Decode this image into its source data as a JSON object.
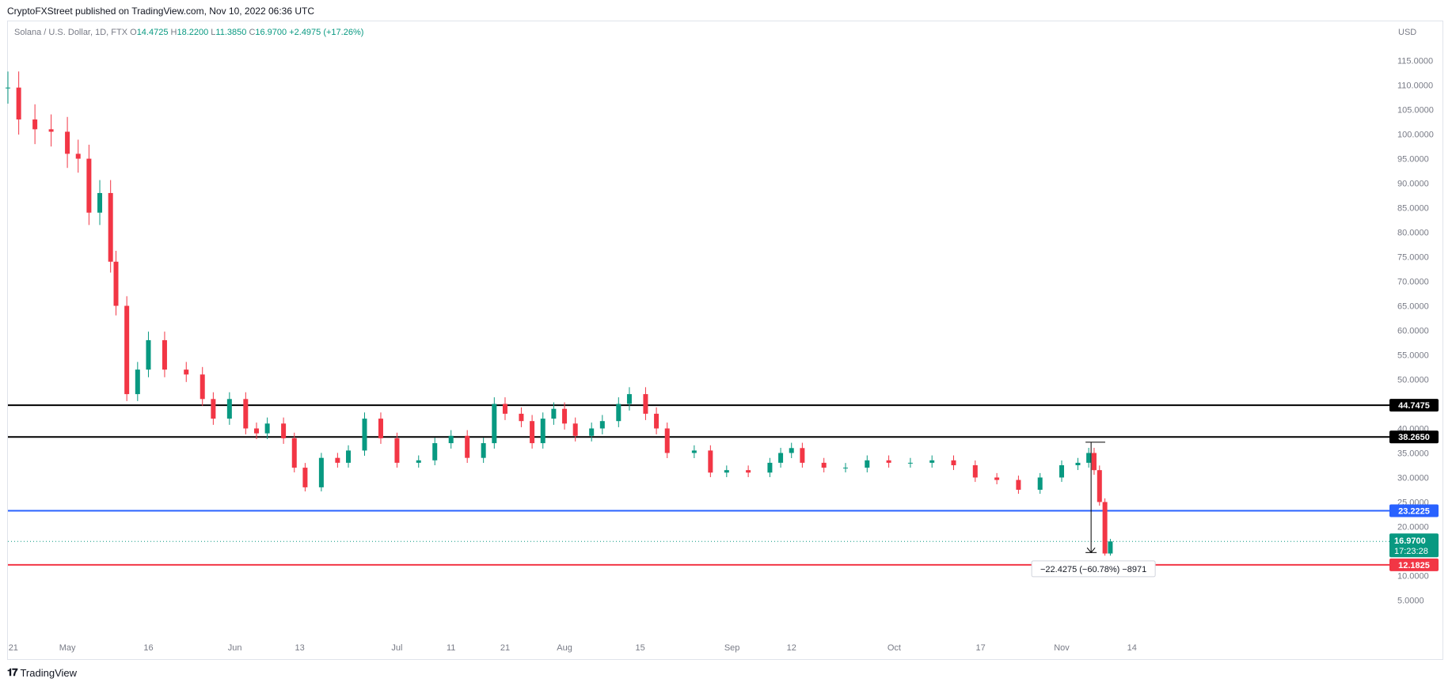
{
  "header": {
    "published_text": "CryptoFXStreet published on TradingView.com, Nov 10, 2022 06:36 UTC"
  },
  "legend": {
    "symbol": "Solana / U.S. Dollar, 1D, FTX",
    "o_label": "O",
    "o_value": "14.4725",
    "h_label": "H",
    "h_value": "18.2200",
    "l_label": "L",
    "l_value": "11.3850",
    "c_label": "C",
    "c_value": "16.9700",
    "change": "+2.4975 (+17.26%)"
  },
  "currency_label": "USD",
  "footer": {
    "logo_text": "TradingView"
  },
  "chart_data": {
    "type": "candlestick",
    "ylim": [
      1.2,
      123
    ],
    "y_ticks": [
      5,
      10,
      15,
      20,
      25,
      30,
      35,
      40,
      45,
      50,
      55,
      60,
      65,
      70,
      75,
      80,
      85,
      90,
      95,
      100,
      105,
      110,
      115
    ],
    "y_tick_labels": [
      "5.0000",
      "10.0000",
      "15.0000",
      "20.0000",
      "25.0000",
      "30.0000",
      "35.0000",
      "40.0000",
      "45.0000",
      "50.0000",
      "55.0000",
      "60.0000",
      "65.0000",
      "70.0000",
      "75.0000",
      "80.0000",
      "85.0000",
      "90.0000",
      "95.0000",
      "100.0000",
      "105.0000",
      "110.0000",
      "115.0000"
    ],
    "x_range": [
      "2022-04-20",
      "2022-11-24"
    ],
    "x_ticks": [
      {
        "date": "2022-04-21",
        "label": "21"
      },
      {
        "date": "2022-05-01",
        "label": "May"
      },
      {
        "date": "2022-05-16",
        "label": "16"
      },
      {
        "date": "2022-06-01",
        "label": "Jun"
      },
      {
        "date": "2022-06-13",
        "label": "13"
      },
      {
        "date": "2022-07-01",
        "label": "Jul"
      },
      {
        "date": "2022-07-11",
        "label": "11"
      },
      {
        "date": "2022-07-21",
        "label": "21"
      },
      {
        "date": "2022-08-01",
        "label": "Aug"
      },
      {
        "date": "2022-08-15",
        "label": "15"
      },
      {
        "date": "2022-09-01",
        "label": "Sep"
      },
      {
        "date": "2022-09-12",
        "label": "12"
      },
      {
        "date": "2022-10-01",
        "label": "Oct"
      },
      {
        "date": "2022-10-17",
        "label": "17"
      },
      {
        "date": "2022-11-01",
        "label": "Nov"
      },
      {
        "date": "2022-11-14",
        "label": "14"
      }
    ],
    "candles": [
      {
        "date": "2022-04-20",
        "close": 109.5
      },
      {
        "date": "2022-04-22",
        "close": 103.0
      },
      {
        "date": "2022-04-25",
        "close": 101.0
      },
      {
        "date": "2022-04-28",
        "close": 100.5
      },
      {
        "date": "2022-05-01",
        "close": 96.0
      },
      {
        "date": "2022-05-03",
        "close": 95.0
      },
      {
        "date": "2022-05-05",
        "close": 84.0
      },
      {
        "date": "2022-05-07",
        "close": 88.0
      },
      {
        "date": "2022-05-09",
        "close": 74.0
      },
      {
        "date": "2022-05-10",
        "close": 65.0
      },
      {
        "date": "2022-05-12",
        "close": 47.0
      },
      {
        "date": "2022-05-14",
        "close": 52.0
      },
      {
        "date": "2022-05-16",
        "close": 58.0
      },
      {
        "date": "2022-05-19",
        "close": 52.0
      },
      {
        "date": "2022-05-23",
        "close": 51.0
      },
      {
        "date": "2022-05-26",
        "close": 46.0
      },
      {
        "date": "2022-05-28",
        "close": 42.0
      },
      {
        "date": "2022-05-31",
        "close": 46.0
      },
      {
        "date": "2022-06-03",
        "close": 40.0
      },
      {
        "date": "2022-06-05",
        "close": 39.0
      },
      {
        "date": "2022-06-07",
        "close": 41.0
      },
      {
        "date": "2022-06-10",
        "close": 38.0
      },
      {
        "date": "2022-06-12",
        "close": 32.0
      },
      {
        "date": "2022-06-14",
        "close": 28.0
      },
      {
        "date": "2022-06-17",
        "close": 34.0
      },
      {
        "date": "2022-06-20",
        "close": 33.0
      },
      {
        "date": "2022-06-22",
        "close": 35.5
      },
      {
        "date": "2022-06-25",
        "close": 42.0
      },
      {
        "date": "2022-06-28",
        "close": 38.0
      },
      {
        "date": "2022-07-01",
        "close": 33.0
      },
      {
        "date": "2022-07-05",
        "close": 33.5
      },
      {
        "date": "2022-07-08",
        "close": 37.0
      },
      {
        "date": "2022-07-11",
        "close": 38.5
      },
      {
        "date": "2022-07-14",
        "close": 34.0
      },
      {
        "date": "2022-07-17",
        "close": 37.0
      },
      {
        "date": "2022-07-19",
        "close": 45.0
      },
      {
        "date": "2022-07-21",
        "close": 43.0
      },
      {
        "date": "2022-07-24",
        "close": 41.5
      },
      {
        "date": "2022-07-26",
        "close": 37.0
      },
      {
        "date": "2022-07-28",
        "close": 42.0
      },
      {
        "date": "2022-07-30",
        "close": 44.0
      },
      {
        "date": "2022-08-01",
        "close": 41.0
      },
      {
        "date": "2022-08-03",
        "close": 38.5
      },
      {
        "date": "2022-08-06",
        "close": 40.0
      },
      {
        "date": "2022-08-08",
        "close": 41.5
      },
      {
        "date": "2022-08-11",
        "close": 45.0
      },
      {
        "date": "2022-08-13",
        "close": 47.0
      },
      {
        "date": "2022-08-16",
        "close": 43.0
      },
      {
        "date": "2022-08-18",
        "close": 40.0
      },
      {
        "date": "2022-08-20",
        "close": 35.0
      },
      {
        "date": "2022-08-25",
        "close": 35.5
      },
      {
        "date": "2022-08-28",
        "close": 31.0
      },
      {
        "date": "2022-08-31",
        "close": 31.5
      },
      {
        "date": "2022-09-04",
        "close": 31.0
      },
      {
        "date": "2022-09-08",
        "close": 33.0
      },
      {
        "date": "2022-09-10",
        "close": 35.0
      },
      {
        "date": "2022-09-12",
        "close": 36.0
      },
      {
        "date": "2022-09-14",
        "close": 33.0
      },
      {
        "date": "2022-09-18",
        "close": 32.0
      },
      {
        "date": "2022-09-22",
        "close": 32.0
      },
      {
        "date": "2022-09-26",
        "close": 33.5
      },
      {
        "date": "2022-09-30",
        "close": 33.0
      },
      {
        "date": "2022-10-04",
        "close": 33.0
      },
      {
        "date": "2022-10-08",
        "close": 33.5
      },
      {
        "date": "2022-10-12",
        "close": 32.5
      },
      {
        "date": "2022-10-16",
        "close": 30.0
      },
      {
        "date": "2022-10-20",
        "close": 29.5
      },
      {
        "date": "2022-10-24",
        "close": 27.5
      },
      {
        "date": "2022-10-28",
        "close": 30.0
      },
      {
        "date": "2022-11-01",
        "close": 32.5
      },
      {
        "date": "2022-11-04",
        "close": 33.0
      },
      {
        "date": "2022-11-06",
        "close": 35.0
      },
      {
        "date": "2022-11-07",
        "close": 31.5
      },
      {
        "date": "2022-11-08",
        "close": 25.0
      },
      {
        "date": "2022-11-09",
        "close": 14.5
      },
      {
        "date": "2022-11-10",
        "close": 16.97
      }
    ],
    "colors": {
      "up": "#089981",
      "down": "#f23645",
      "line": "#000000",
      "support_blue": "#2962ff",
      "support_red": "#f23645"
    },
    "levels": [
      {
        "value": 44.7475,
        "label": "44.7475",
        "color": "#000000"
      },
      {
        "value": 38.265,
        "label": "38.2650",
        "color": "#000000"
      },
      {
        "value": 23.2225,
        "label": "23.2225",
        "color": "#2962ff"
      },
      {
        "value": 12.1825,
        "label": "12.1825",
        "color": "#f23645"
      }
    ],
    "current_price": {
      "value": 16.97,
      "label": "16.9700",
      "countdown": "17:23:28",
      "color": "#089981"
    },
    "measure": {
      "from_date": "2022-11-06",
      "to_date": "2022-11-07",
      "from_value": 37.2,
      "to_value": 14.7,
      "label": "−22.4275 (−60.78%) −8971"
    }
  }
}
